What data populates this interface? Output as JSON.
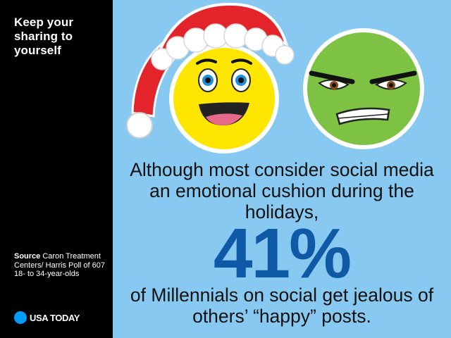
{
  "sidebar": {
    "title": "Keep your sharing to yourself",
    "source_label": "Source",
    "source_text": "Caron Treatment Centers/ Harris Poll of 607 18- to 34-year-olds",
    "brand": "USA TODAY"
  },
  "main": {
    "lead_text": "Although most consider social media an emotional cushion during the holidays,",
    "stat_value": "41%",
    "tail_text": "of Millennials on social get jealous of others’ “happy” posts."
  },
  "colors": {
    "sidebar_bg": "#000000",
    "main_bg": "#87c9f1",
    "stat_color": "#0e5aa7",
    "brand_dot": "#009bff",
    "happy_face": "#ffe600",
    "jealous_face": "#7dc242",
    "santa_hat": "#e3242b"
  },
  "icons": {
    "left": "santa-hat-happy-face-icon",
    "right": "jealous-green-face-icon"
  }
}
